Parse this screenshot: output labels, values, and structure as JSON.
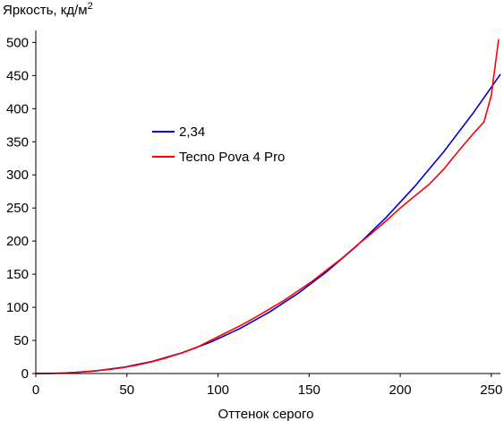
{
  "chart_data": {
    "type": "line",
    "ylabel": "Яркость, кд/м",
    "ylabel_superscript": "2",
    "xlabel": "Оттенок серого",
    "xlim": [
      0,
      255
    ],
    "ylim": [
      0,
      510
    ],
    "x_ticks": [
      0,
      50,
      100,
      150,
      200,
      250
    ],
    "y_ticks": [
      0,
      50,
      100,
      150,
      200,
      250,
      300,
      350,
      400,
      450,
      500
    ],
    "grid": false,
    "legend_position": "center-left",
    "series": [
      {
        "name": "2,34",
        "color": "#0000cc",
        "x": [
          0,
          16,
          32,
          48,
          64,
          80,
          96,
          112,
          128,
          144,
          160,
          176,
          192,
          208,
          224,
          240,
          255
        ],
        "y": [
          0,
          0.7,
          3.6,
          9.4,
          18.4,
          31.1,
          47.5,
          67.9,
          92.4,
          121.2,
          154.5,
          192.4,
          235,
          282.6,
          335.3,
          393.2,
          452
        ]
      },
      {
        "name": "Tecno Pova 4 Pro",
        "color": "#ff0000",
        "x": [
          0,
          8,
          16,
          24,
          32,
          40,
          48,
          56,
          64,
          72,
          80,
          88,
          96,
          104,
          112,
          120,
          128,
          136,
          144,
          152,
          160,
          168,
          176,
          184,
          192,
          200,
          208,
          216,
          224,
          232,
          240,
          246,
          250,
          254
        ],
        "y": [
          0,
          0,
          1,
          2,
          4,
          6,
          9,
          13,
          18,
          24,
          31,
          39,
          50,
          61,
          72,
          84,
          97,
          110,
          125,
          140,
          157,
          174,
          193,
          211,
          230,
          250,
          268,
          286,
          309,
          336,
          362,
          380,
          420,
          505
        ]
      }
    ]
  }
}
